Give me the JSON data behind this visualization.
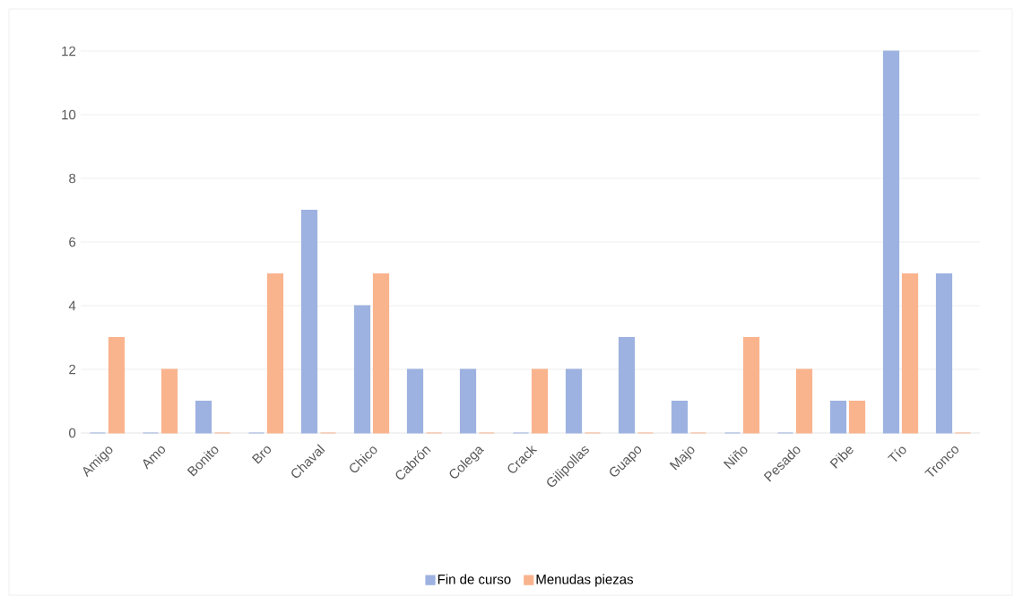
{
  "chart_data": {
    "type": "bar",
    "categories": [
      "Amigo",
      "Amo",
      "Bonito",
      "Bro",
      "Chaval",
      "Chico",
      "Cabrón",
      "Colega",
      "Crack",
      "Gilipollas",
      "Guapo",
      "Majo",
      "Niño",
      "Pesado",
      "Pibe",
      "Tío",
      "Tronco"
    ],
    "series": [
      {
        "name": "Fin de curso",
        "color": "#9db2e0",
        "values": [
          0,
          0,
          1,
          0,
          7,
          4,
          2,
          2,
          0,
          2,
          3,
          1,
          0,
          0,
          1,
          12,
          5
        ]
      },
      {
        "name": "Menudas piezas",
        "color": "#f9b48e",
        "values": [
          3,
          2,
          0,
          5,
          0,
          5,
          0,
          0,
          2,
          0,
          0,
          0,
          3,
          2,
          1,
          5,
          0
        ]
      }
    ],
    "ylim": [
      0,
      12
    ],
    "yticks": [
      0,
      2,
      4,
      6,
      8,
      10,
      12
    ],
    "grid": "y",
    "legend": "bottom"
  }
}
